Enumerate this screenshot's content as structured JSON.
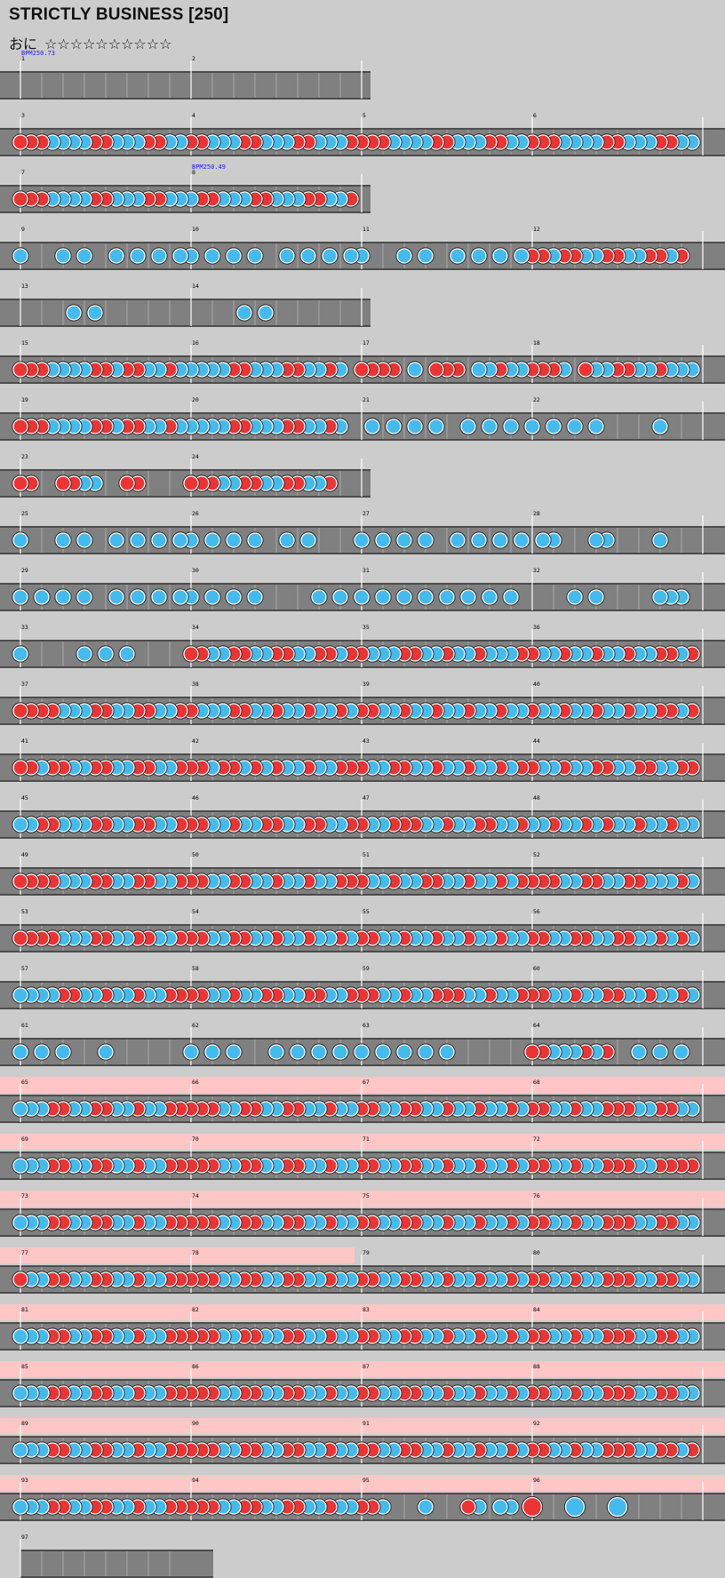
{
  "song": {
    "title": "STRICTLY BUSINESS [250]",
    "course_label": "おに",
    "stars": "☆☆☆☆☆☆☆☆☆☆"
  },
  "colors": {
    "background": "#cccccc",
    "lane": "#808080",
    "gogo": "#ffc6c6",
    "don": "#ee3333",
    "ka": "#44bbee",
    "bpm_text": "#1a1aff"
  },
  "bpm_changes": [
    {
      "measure": 1,
      "label": "BPM250.73"
    },
    {
      "measure": 8,
      "label": "BPM250.49"
    }
  ],
  "rows": [
    {
      "measures": [
        1,
        2
      ]
    },
    {
      "measures": [
        3,
        4,
        5,
        6
      ]
    },
    {
      "measures": [
        7,
        8
      ]
    },
    {
      "measures": [
        9,
        10,
        11,
        12
      ]
    },
    {
      "measures": [
        13,
        14
      ]
    },
    {
      "measures": [
        15,
        16,
        17,
        18
      ]
    },
    {
      "measures": [
        19,
        20,
        21,
        22
      ]
    },
    {
      "measures": [
        23,
        24
      ]
    },
    {
      "measures": [
        25,
        26,
        27,
        28
      ]
    },
    {
      "measures": [
        29,
        30,
        31,
        32
      ]
    },
    {
      "measures": [
        33,
        34,
        35,
        36
      ]
    },
    {
      "measures": [
        37,
        38,
        39,
        40
      ]
    },
    {
      "measures": [
        41,
        42,
        43,
        44
      ]
    },
    {
      "measures": [
        45,
        46,
        47,
        48
      ]
    },
    {
      "measures": [
        49,
        50,
        51,
        52
      ]
    },
    {
      "measures": [
        53,
        54,
        55,
        56
      ]
    },
    {
      "measures": [
        57,
        58,
        59,
        60
      ]
    },
    {
      "measures": [
        61,
        62,
        63,
        64
      ]
    },
    {
      "measures": [
        65,
        66,
        67,
        68
      ],
      "gogo": true
    },
    {
      "measures": [
        69,
        70,
        71,
        72
      ],
      "gogo": true
    },
    {
      "measures": [
        73,
        74,
        75,
        76
      ],
      "gogo": true
    },
    {
      "measures": [
        77,
        78,
        79,
        80
      ],
      "gogo": true,
      "gogo_partial": 0.5
    },
    {
      "measures": [
        81,
        82,
        83,
        84
      ],
      "gogo": true
    },
    {
      "measures": [
        85,
        86,
        87,
        88
      ],
      "gogo": true
    },
    {
      "measures": [
        89,
        90,
        91,
        92
      ],
      "gogo": true
    },
    {
      "measures": [
        93,
        94,
        95,
        96
      ],
      "gogo": true
    },
    {
      "measures": [
        97
      ],
      "width_beats": 4
    }
  ],
  "notes": {
    "3": "DDDKKKKDDKKKDDKK",
    "4": "DDKKKDDKKKDDKKKD",
    "5": "DDDKKKKDDKKKDDKK",
    "6": "DDDKKKKDDKKKDDKK",
    "7": "DDDKKKKDDKKKDDKK",
    "8": "KDDKKKDDKKKDDKKD",
    "9": "K000K0K00K0K0K0K",
    "10": "K0K0K0K00K0K0K0K",
    "11": "K000K0K00K0K0K0K",
    "12": "DDKDDKKDDKKDDKD0",
    "13": "00000K0K00000000",
    "14": "00000K0K00000000",
    "15": "DDDKKKKDDKDDKKDK",
    "16": "KKKKDDKKKDDKKDK0",
    "17": "DDDD0K0DDD0KKDKK",
    "18": "DDDK0DKKDDKKDKKK",
    "19": "DDDKKKKDDKDDKKDK",
    "20": "KKKKDDKKKDDKKDK0",
    "21": "0K0K0K0K00K0K0K0",
    "22": "K0K0K0K00000K000",
    "23": "DD00DDKK00DD0000",
    "24": "DDDKKDDKKDDKKD00",
    "25": "K000K0K00K0K0K0K",
    "26": "K0K0K0K00K0K0000",
    "27": "K0K0K0K00K0K0K0K",
    "28": "0KK000KK0000K000",
    "29": "K0K0K0K00K0K0K0K",
    "30": "K0K0K0K00000K0K0",
    "31": "K0K0K0K0K0K0K0K0",
    "32": "0000K0K00000KKK0",
    "33": "K00000K0K0K00000",
    "34": "DDKKDDKKDDKKDDKD",
    "35": "DKKKDDKKDKKDKKKD",
    "36": "DKKDKKDKKDKKDDKD",
    "37": "DDDDKKKDDKKDDKKD",
    "38": "DKKKDDKKDKKDKKDK",
    "39": "DDKKDKKDKKDKKDKK",
    "40": "DKKDKKDKKDKKDDKD",
    "41": "DDKDDKKDDKKDDKKD",
    "42": "DDKDDKDKDKKDKKDD",
    "43": "DKKDDKKDKKDKKDKD",
    "44": "DKKDKKDDKKDDKKDD",
    "45": "KKDDKKKDDKKDDKKD",
    "46": "DDKKDKKDDKKDDKKD",
    "47": "DKKDDDKKDKKDDKKD",
    "48": "KKDKKDKDKKDKKDKK",
    "49": "DDDDKKKDDKKDDKKD",
    "50": "DDKKDDKKDKKDKKDD",
    "51": "DKKDKKDDKKDKKDKD",
    "52": "DDDKKDDKKDDKKKDK",
    "53": "DDDDKKKDDKKDDKKD",
    "54": "DDKKDDKKDKKDKKDK",
    "55": "DDKKDKKDKKDKKDKK",
    "56": "DDKKDDKKDDKKDKDK",
    "57": "KKKKDDKKDKKDKKDD",
    "58": "DDKKDKKDDKKDDKKD",
    "59": "DDKKDKKDDDKKDKKD",
    "60": "DDKKDKKDDKKDKKDK",
    "61": "K0K0K000K0000000",
    "62": "K0K0K000K0K0K0K0",
    "63": "K0K0K0K0K0000000",
    "64": "DDKKKDKD00K0K0K0",
    "65": "KKKDDKKDDKKDKKDD",
    "66": "DDDKKDDKKDDKKDKK",
    "67": "DDKKDDKKDKKDKKDK",
    "68": "DDKKDKKDDDKKDDKK",
    "69": "KKKDDKKDDKKDKKDD",
    "70": "DDDKKDDKKDDKKDKK",
    "71": "DDKKDDKKDKKDKKDK",
    "72": "DDKKDKKDDDKKDDDD",
    "73": "KKKDDKKDDKKDKKDD",
    "74": "DDDKKDDKKDDKKDKK",
    "75": "DDKKDDKKDKKDKKDK",
    "76": "DDKKDKKDDDKKDDKK",
    "77": "DKKDDKKDDKKDKKDD",
    "78": "DDDKKDDKKDDKKDKK",
    "79": "DDKKDDKKDKKDKKDK",
    "80": "DDKKDKKDDDKKDDKK",
    "81": "KKKDDKKDDKKDKKDD",
    "82": "DDDKKDDKKDDKKDKK",
    "83": "DDKKDDKKDKKDKKDK",
    "84": "DDKKDKKDDDKKDDKK",
    "85": "KKKDDKKDDKKDKKDD",
    "86": "DDDKKDDKKDDKKDKK",
    "87": "DDKKDDKKDKKDKKDK",
    "88": "DDKKDKKDDDKKDDKK",
    "89": "KKKDDKKDDKKDKKDD",
    "90": "DDDKKDDKKDDKKDKK",
    "91": "DDKKDDKKDKKDKKDK",
    "92": "DDKKDKKDDDKKDDKD",
    "93": "KKKDDKKDDKKDKKDD",
    "94": "DDDKKDDKKDDKKDKK",
    "95": "DDK000K000DK0KK0",
    "96": "d000k000k0000000"
  }
}
